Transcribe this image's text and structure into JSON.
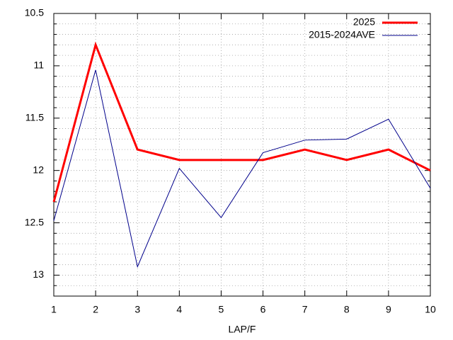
{
  "chart_data": {
    "type": "line",
    "xlabel": "LAP/F",
    "x": [
      1,
      2,
      3,
      4,
      5,
      6,
      7,
      8,
      9,
      10
    ],
    "series": [
      {
        "name": "2025",
        "color": "#ff0000",
        "width": 3,
        "values": [
          12.3,
          10.8,
          11.8,
          11.9,
          11.9,
          11.9,
          11.8,
          11.9,
          11.8,
          12.0
        ]
      },
      {
        "name": "2015-2024AVE",
        "color": "#00008b",
        "width": 1,
        "values": [
          12.48,
          11.04,
          12.92,
          11.98,
          12.45,
          11.83,
          11.71,
          11.7,
          11.51,
          12.17
        ]
      }
    ],
    "xlim": [
      1,
      10
    ],
    "xticks": [
      1,
      2,
      3,
      4,
      5,
      6,
      7,
      8,
      9,
      10
    ],
    "ylim": [
      13.2,
      10.5
    ],
    "yticks": [
      10.5,
      11,
      11.5,
      12,
      12.5,
      13
    ],
    "yminorticks": [
      10.6,
      10.7,
      10.8,
      10.9,
      11.1,
      11.2,
      11.3,
      11.4,
      11.6,
      11.7,
      11.8,
      11.9,
      12.1,
      12.2,
      12.3,
      12.4,
      12.6,
      12.7,
      12.8,
      12.9,
      13.1
    ],
    "grid": true,
    "legend": "top-right"
  }
}
